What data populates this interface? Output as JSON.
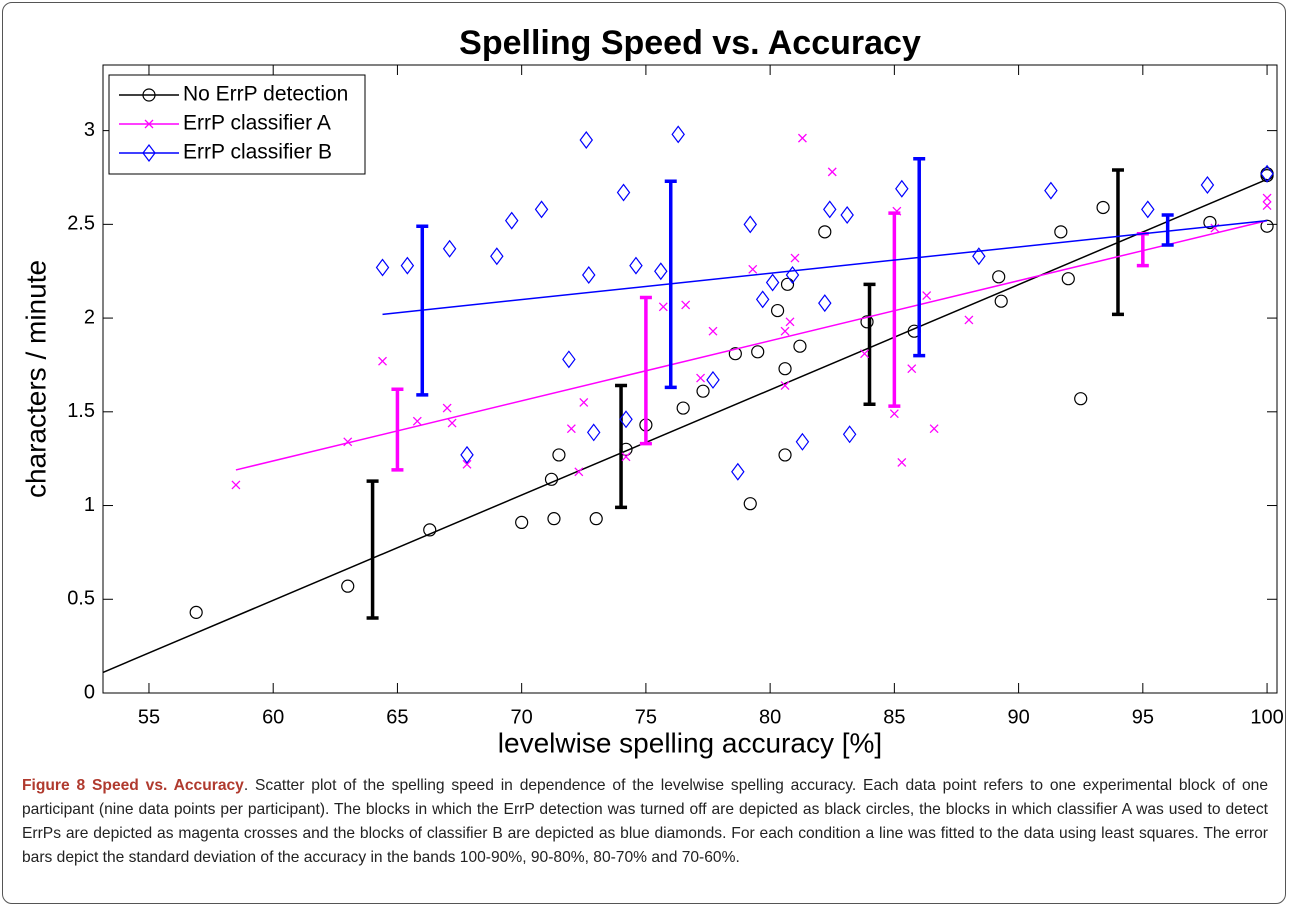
{
  "chart_data": {
    "type": "scatter",
    "title": "Spelling Speed vs. Accuracy",
    "xlabel": "levelwise spelling accuracy [%]",
    "ylabel": "characters / minute",
    "xlim": [
      53.15,
      100.4
    ],
    "ylim": [
      0,
      3.35
    ],
    "xticks": [
      55,
      60,
      65,
      70,
      75,
      80,
      85,
      90,
      95,
      100
    ],
    "yticks": [
      0,
      0.5,
      1,
      1.5,
      2,
      2.5,
      3
    ],
    "legend": "upper left",
    "series": [
      {
        "name": "No ErrP detection",
        "color": "#000000",
        "marker": "circle",
        "x": [
          56.9,
          63,
          66.3,
          70,
          71.3,
          73,
          71.2,
          71.5,
          74.2,
          75,
          76.5,
          77.3,
          78.6,
          79.5,
          79.2,
          80.6,
          80.6,
          80.3,
          80.7,
          81.2,
          82.2,
          83.9,
          85.8,
          89.2,
          89.3,
          91.7,
          92,
          92.5,
          93.4,
          97.7,
          100,
          100,
          100
        ],
        "values": [
          0.43,
          0.57,
          0.87,
          0.91,
          0.93,
          0.93,
          1.14,
          1.27,
          1.3,
          1.43,
          1.52,
          1.61,
          1.81,
          1.82,
          1.01,
          1.27,
          1.73,
          2.04,
          2.18,
          1.85,
          2.46,
          1.98,
          1.93,
          2.22,
          2.09,
          2.46,
          2.21,
          1.57,
          2.59,
          2.51,
          2.76,
          2.49,
          2.77
        ],
        "fit": {
          "x": [
            53.15,
            100
          ],
          "y": [
            0.11,
            2.74
          ]
        },
        "errorbars": {
          "x": [
            64,
            74,
            84,
            94
          ],
          "values": [
            0.765,
            1.315,
            1.86,
            2.405
          ],
          "errors": [
            0.365,
            0.325,
            0.32,
            0.385
          ]
        }
      },
      {
        "name": "ErrP classifier A",
        "color": "#ff00ff",
        "marker": "x",
        "x": [
          58.5,
          63,
          64.4,
          65.8,
          67,
          67.2,
          67.8,
          72,
          72.3,
          72.5,
          74.2,
          75.7,
          76.6,
          77.2,
          77.7,
          79.3,
          80.6,
          80.6,
          80.8,
          81,
          81.3,
          82.5,
          83.8,
          85.1,
          85,
          85.3,
          85.7,
          86.3,
          86.6,
          88,
          97.9,
          100,
          100
        ],
        "values": [
          1.11,
          1.34,
          1.77,
          1.45,
          1.52,
          1.44,
          1.22,
          1.41,
          1.18,
          1.55,
          1.26,
          2.06,
          2.07,
          1.68,
          1.93,
          2.26,
          1.64,
          1.93,
          1.98,
          2.32,
          2.96,
          2.78,
          1.81,
          2.57,
          1.49,
          1.23,
          1.73,
          2.12,
          1.41,
          1.99,
          2.48,
          2.64,
          2.6
        ],
        "fit": {
          "x": [
            58.5,
            100
          ],
          "y": [
            1.19,
            2.52
          ]
        },
        "errorbars": {
          "x": [
            65,
            75,
            85,
            95
          ],
          "values": [
            1.405,
            1.72,
            2.045,
            2.365
          ],
          "errors": [
            0.215,
            0.39,
            0.515,
            0.085
          ]
        }
      },
      {
        "name": "ErrP classifier B",
        "color": "#0000ff",
        "marker": "diamond",
        "x": [
          64.4,
          65.4,
          67.1,
          67.8,
          69,
          69.6,
          70.8,
          71.9,
          72.6,
          72.7,
          72.9,
          74.1,
          74.2,
          74.6,
          75.6,
          76.3,
          77.7,
          78.7,
          79.2,
          79.7,
          80.1,
          80.9,
          81.3,
          82.2,
          82.4,
          83.1,
          83.2,
          85.3,
          88.4,
          91.3,
          95.2,
          97.6,
          100
        ],
        "values": [
          2.27,
          2.28,
          2.37,
          1.27,
          2.33,
          2.52,
          2.58,
          1.78,
          2.95,
          2.23,
          1.39,
          2.67,
          1.46,
          2.28,
          2.25,
          2.98,
          1.67,
          1.18,
          2.5,
          2.1,
          2.19,
          2.23,
          1.34,
          2.08,
          2.58,
          2.55,
          1.38,
          2.69,
          2.33,
          2.68,
          2.58,
          2.71,
          2.77
        ],
        "fit": {
          "x": [
            64.4,
            100
          ],
          "y": [
            2.02,
            2.52
          ]
        },
        "errorbars": {
          "x": [
            66,
            76,
            86,
            96
          ],
          "values": [
            2.04,
            2.18,
            2.325,
            2.47
          ],
          "errors": [
            0.45,
            0.55,
            0.525,
            0.08
          ]
        }
      }
    ]
  },
  "caption": {
    "label": "Figure 8 Speed vs. Accuracy",
    "text": ". Scatter plot of the spelling speed in dependence of the levelwise spelling accuracy. Each data point refers to one experimental block of one participant (nine data points per participant). The blocks in which the ErrP detection was turned off are depicted as black circles, the blocks in which classifier A was used to detect ErrPs are depicted as magenta crosses and the blocks of classifier B are depicted as blue diamonds. For each condition a line was fitted to the data using least squares. The error bars depict the standard deviation of the accuracy in the bands 100-90%, 90-80%, 80-70% and 70-60%."
  }
}
